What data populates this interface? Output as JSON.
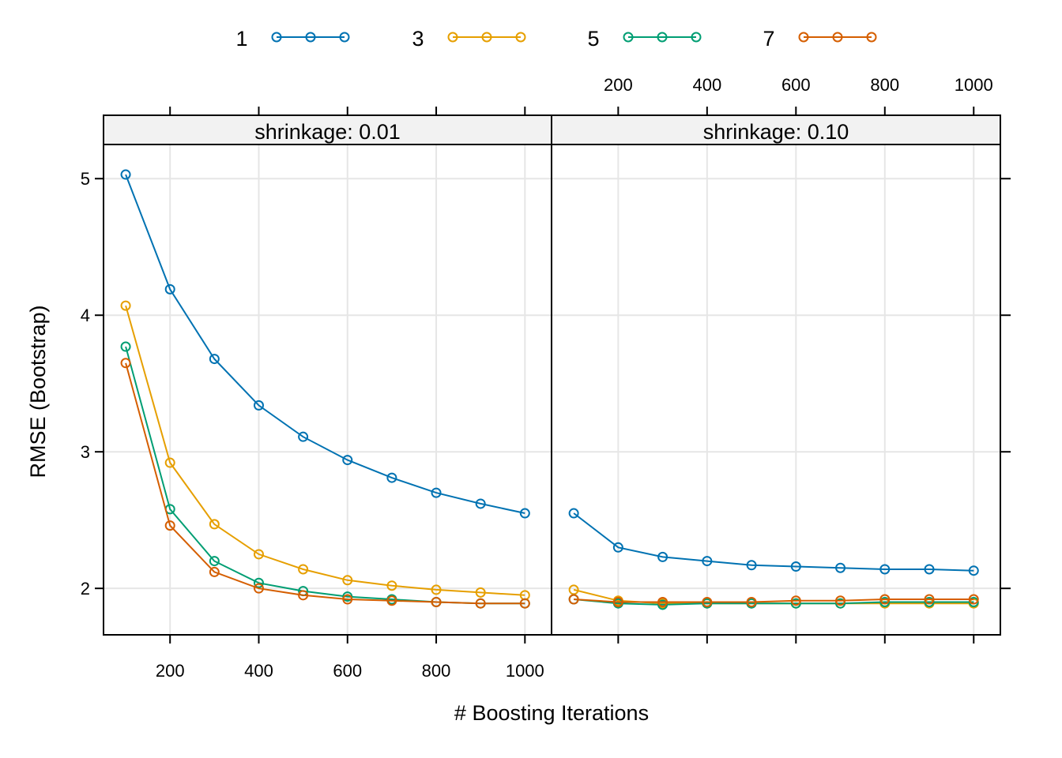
{
  "chart_data": {
    "type": "line",
    "xlabel": "# Boosting Iterations",
    "ylabel": "RMSE (Bootstrap)",
    "x_ticks": [
      200,
      400,
      600,
      800,
      1000
    ],
    "y_ticks": [
      2,
      3,
      4,
      5
    ],
    "xlim": [
      50,
      1060
    ],
    "ylim": [
      1.66,
      5.25
    ],
    "grid": true,
    "legend_position": "top",
    "legend": [
      {
        "name": "1",
        "color": "#0072B2"
      },
      {
        "name": "3",
        "color": "#E69F00"
      },
      {
        "name": "5",
        "color": "#009E73"
      },
      {
        "name": "7",
        "color": "#D55E00"
      }
    ],
    "panels": [
      {
        "strip": "shrinkage: 0.01",
        "x": [
          100,
          200,
          300,
          400,
          500,
          600,
          700,
          800,
          900,
          1000
        ],
        "series": [
          {
            "name": "1",
            "values": [
              5.03,
              4.19,
              3.68,
              3.34,
              3.11,
              2.94,
              2.81,
              2.7,
              2.62,
              2.55
            ]
          },
          {
            "name": "3",
            "values": [
              4.07,
              2.92,
              2.47,
              2.25,
              2.14,
              2.06,
              2.02,
              1.99,
              1.97,
              1.95
            ]
          },
          {
            "name": "5",
            "values": [
              3.77,
              2.58,
              2.2,
              2.04,
              1.98,
              1.94,
              1.92,
              1.9,
              1.89,
              1.89
            ]
          },
          {
            "name": "7",
            "values": [
              3.65,
              2.46,
              2.12,
              2.0,
              1.95,
              1.92,
              1.91,
              1.9,
              1.89,
              1.89
            ]
          }
        ]
      },
      {
        "strip": "shrinkage: 0.10",
        "x": [
          100,
          200,
          300,
          400,
          500,
          600,
          700,
          800,
          900,
          1000
        ],
        "series": [
          {
            "name": "1",
            "values": [
              2.55,
              2.3,
              2.23,
              2.2,
              2.17,
              2.16,
              2.15,
              2.14,
              2.14,
              2.13
            ]
          },
          {
            "name": "3",
            "values": [
              1.99,
              1.91,
              1.89,
              1.89,
              1.89,
              1.89,
              1.89,
              1.89,
              1.89,
              1.89
            ]
          },
          {
            "name": "5",
            "values": [
              1.92,
              1.89,
              1.88,
              1.89,
              1.89,
              1.89,
              1.89,
              1.9,
              1.9,
              1.9
            ]
          },
          {
            "name": "7",
            "values": [
              1.92,
              1.9,
              1.9,
              1.9,
              1.9,
              1.91,
              1.91,
              1.92,
              1.92,
              1.92
            ]
          }
        ]
      }
    ]
  }
}
